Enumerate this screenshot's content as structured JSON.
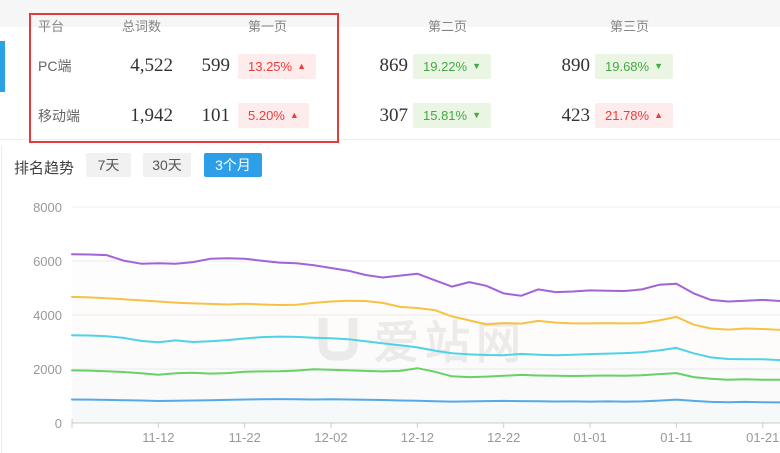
{
  "table": {
    "headers": {
      "platform": "平台",
      "total": "总词数",
      "page1": "第一页",
      "page2": "第二页",
      "page3": "第三页"
    },
    "rows": [
      {
        "platform": "PC端",
        "total": "4,522",
        "page1_count": "599",
        "page1_pct": "13.25%",
        "page1_dir": "up",
        "page2_count": "869",
        "page2_pct": "19.22%",
        "page2_dir": "down",
        "page3_count": "890",
        "page3_pct": "19.68%",
        "page3_dir": "down"
      },
      {
        "platform": "移动端",
        "total": "1,942",
        "page1_count": "101",
        "page1_pct": "5.20%",
        "page1_dir": "up",
        "page2_count": "307",
        "page2_pct": "15.81%",
        "page2_dir": "down",
        "page3_count": "423",
        "page3_pct": "21.78%",
        "page3_dir": "up"
      }
    ]
  },
  "trend": {
    "label": "排名趋势",
    "tabs": [
      {
        "label": "7天",
        "active": false
      },
      {
        "label": "30天",
        "active": false
      },
      {
        "label": "3个月",
        "active": true
      }
    ]
  },
  "watermark": {
    "text": "爱站网"
  },
  "colors": {
    "accent_blue": "#2d9fe8",
    "row_indicator": "#2aa2e4",
    "highlight_border": "#e23b3b",
    "up_red": "#f03b3b",
    "up_bg": "#fdeceb",
    "down_green": "#44a844",
    "down_bg": "#eaf6e3",
    "axis_text": "#999999",
    "gridline": "#ededed"
  },
  "chart_data": {
    "type": "line",
    "title": "",
    "xlabel": "",
    "ylabel": "",
    "ylim": [
      0,
      8000
    ],
    "y_ticks": [
      0,
      2000,
      4000,
      6000,
      8000
    ],
    "grid": true,
    "legend": "none",
    "x_days": [
      0,
      2,
      4,
      6,
      8,
      10,
      12,
      14,
      16,
      18,
      20,
      22,
      24,
      26,
      28,
      30,
      32,
      34,
      36,
      38,
      40,
      42,
      44,
      46,
      48,
      50,
      52,
      54,
      56,
      58,
      60,
      62,
      64,
      66,
      68,
      70,
      72,
      74,
      76,
      78,
      80,
      82
    ],
    "x_tick_days": [
      10,
      20,
      30,
      40,
      50,
      60,
      70,
      80
    ],
    "x_tick_labels": [
      "11-12",
      "11-22",
      "12-02",
      "12-12",
      "12-22",
      "01-01",
      "01-11",
      "01-21"
    ],
    "series": [
      {
        "name": "purple",
        "color": "#a263d8",
        "values": [
          6250,
          6240,
          6220,
          6010,
          5900,
          5920,
          5900,
          5960,
          6080,
          6100,
          6080,
          6010,
          5940,
          5920,
          5840,
          5740,
          5640,
          5480,
          5390,
          5460,
          5530,
          5290,
          5050,
          5220,
          5080,
          4800,
          4710,
          4950,
          4850,
          4870,
          4910,
          4900,
          4890,
          4950,
          5120,
          5160,
          4800,
          4560,
          4500,
          4530,
          4560,
          4520
        ]
      },
      {
        "name": "yellow",
        "color": "#f6c243",
        "values": [
          4670,
          4650,
          4620,
          4580,
          4540,
          4500,
          4460,
          4430,
          4410,
          4390,
          4420,
          4390,
          4370,
          4380,
          4450,
          4500,
          4530,
          4520,
          4450,
          4300,
          4260,
          4180,
          3950,
          3800,
          3650,
          3700,
          3680,
          3780,
          3720,
          3690,
          3690,
          3700,
          3690,
          3700,
          3800,
          3930,
          3640,
          3500,
          3460,
          3500,
          3480,
          3450
        ]
      },
      {
        "name": "cyan",
        "color": "#4ed3e6",
        "values": [
          3250,
          3240,
          3210,
          3150,
          3040,
          2990,
          3060,
          3000,
          3030,
          3070,
          3130,
          3180,
          3200,
          3190,
          3160,
          3140,
          3100,
          3030,
          2950,
          2880,
          2800,
          2680,
          2580,
          2540,
          2520,
          2510,
          2560,
          2530,
          2510,
          2530,
          2550,
          2570,
          2590,
          2620,
          2690,
          2780,
          2580,
          2430,
          2370,
          2360,
          2360,
          2330
        ]
      },
      {
        "name": "green",
        "color": "#67d067",
        "values": [
          1950,
          1940,
          1920,
          1890,
          1840,
          1790,
          1840,
          1860,
          1830,
          1850,
          1900,
          1910,
          1920,
          1940,
          1990,
          1970,
          1950,
          1930,
          1910,
          1930,
          2030,
          1900,
          1730,
          1700,
          1720,
          1750,
          1780,
          1760,
          1750,
          1740,
          1750,
          1760,
          1750,
          1770,
          1810,
          1850,
          1700,
          1640,
          1600,
          1620,
          1600,
          1600
        ]
      },
      {
        "name": "blue",
        "color": "#56a9e5",
        "values": [
          870,
          865,
          855,
          845,
          835,
          815,
          825,
          835,
          845,
          855,
          870,
          878,
          885,
          880,
          872,
          880,
          872,
          862,
          852,
          835,
          822,
          802,
          792,
          800,
          810,
          818,
          812,
          802,
          795,
          800,
          792,
          800,
          792,
          800,
          828,
          868,
          820,
          782,
          772,
          780,
          772,
          762
        ]
      }
    ]
  }
}
